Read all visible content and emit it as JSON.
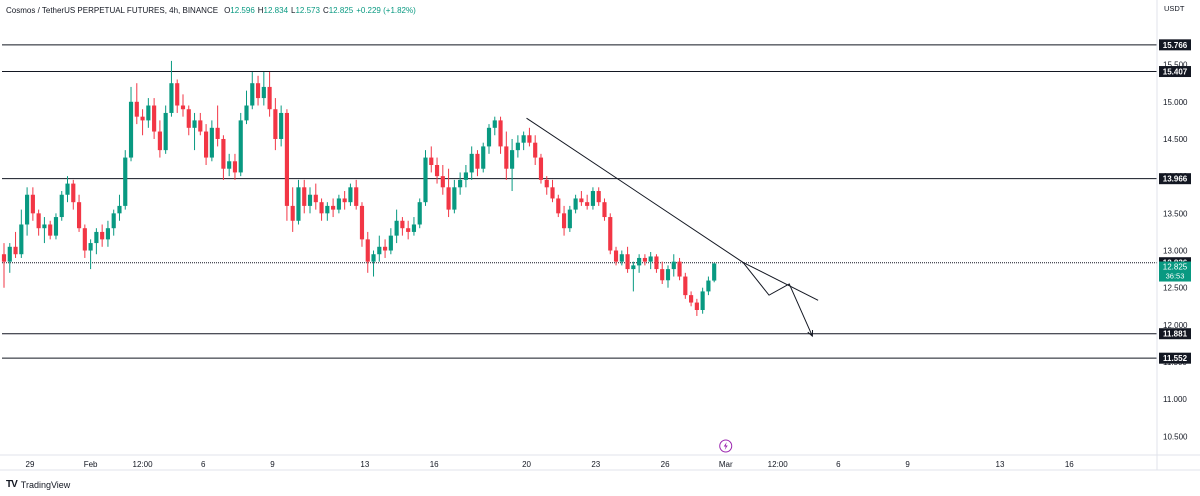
{
  "header": {
    "symbol": "Cosmos / TetherUS PERPETUAL FUTURES, 4h, BINANCE",
    "ohlc": [
      {
        "label": "O",
        "value": "12.596"
      },
      {
        "label": "H",
        "value": "12.834"
      },
      {
        "label": "L",
        "value": "12.573"
      },
      {
        "label": "C",
        "value": "12.825"
      }
    ],
    "change": "+0.229 (+1.82%)"
  },
  "currency_label": "USDT",
  "footer": {
    "brand": "TradingView"
  },
  "colors": {
    "up": "#089981",
    "down": "#f23645",
    "level_line": "#131722",
    "current_price_bg": "#089981",
    "level_label_bg": "#131722",
    "event_icon": "#9c27b0"
  },
  "chart_data": {
    "type": "candlestick",
    "title": "",
    "ylim": [
      10.25,
      16.1
    ],
    "y_ticks": [
      "15.500",
      "15.000",
      "14.500",
      "14.000",
      "13.500",
      "13.000",
      "12.500",
      "12.000",
      "11.500",
      "11.000",
      "10.500"
    ],
    "x_ticks": [
      {
        "label": "29",
        "x": 4.5
      },
      {
        "label": "Feb",
        "x": 15
      },
      {
        "label": "12:00",
        "x": 24
      },
      {
        "label": "6",
        "x": 34.5
      },
      {
        "label": "9",
        "x": 46.5
      },
      {
        "label": "13",
        "x": 62.5
      },
      {
        "label": "16",
        "x": 74.5
      },
      {
        "label": "20",
        "x": 90.5
      },
      {
        "label": "23",
        "x": 102.5
      },
      {
        "label": "26",
        "x": 114.5
      },
      {
        "label": "Mar",
        "x": 125
      },
      {
        "label": "12:00",
        "x": 134
      },
      {
        "label": "6",
        "x": 144.5
      },
      {
        "label": "9",
        "x": 156.5
      },
      {
        "label": "13",
        "x": 172.5
      },
      {
        "label": "16",
        "x": 184.5
      }
    ],
    "x_range": [
      0,
      199
    ],
    "levels": [
      {
        "label": "15.766",
        "value": 15.766
      },
      {
        "label": "15.407",
        "value": 15.407
      },
      {
        "label": "13.966",
        "value": 13.966
      },
      {
        "label": "12.836",
        "value": 12.836
      },
      {
        "label": "11.881",
        "value": 11.881
      },
      {
        "label": "11.552",
        "value": 11.552
      }
    ],
    "current_price": {
      "label": "12.825",
      "value": 12.825,
      "countdown": "36:53"
    },
    "trendline": [
      [
        90.5,
        14.78
      ],
      [
        128,
        12.84
      ],
      [
        141,
        12.33
      ]
    ],
    "projection": [
      [
        128,
        12.84
      ],
      [
        132.5,
        12.4
      ],
      [
        136,
        12.55
      ],
      [
        140,
        11.85
      ]
    ],
    "candles": [
      {
        "x": 0,
        "o": 12.95,
        "h": 13.1,
        "l": 12.5,
        "c": 12.85
      },
      {
        "x": 1,
        "o": 12.85,
        "h": 13.1,
        "l": 12.7,
        "c": 13.05
      },
      {
        "x": 2,
        "o": 13.05,
        "h": 13.25,
        "l": 12.9,
        "c": 12.95
      },
      {
        "x": 3,
        "o": 12.95,
        "h": 13.55,
        "l": 12.9,
        "c": 13.35
      },
      {
        "x": 4,
        "o": 13.35,
        "h": 13.85,
        "l": 13.2,
        "c": 13.75
      },
      {
        "x": 5,
        "o": 13.75,
        "h": 13.85,
        "l": 13.4,
        "c": 13.5
      },
      {
        "x": 6,
        "o": 13.5,
        "h": 13.55,
        "l": 13.2,
        "c": 13.3
      },
      {
        "x": 7,
        "o": 13.3,
        "h": 13.45,
        "l": 13.1,
        "c": 13.35
      },
      {
        "x": 8,
        "o": 13.35,
        "h": 13.4,
        "l": 13.15,
        "c": 13.2
      },
      {
        "x": 9,
        "o": 13.2,
        "h": 13.5,
        "l": 13.15,
        "c": 13.45
      },
      {
        "x": 10,
        "o": 13.45,
        "h": 13.8,
        "l": 13.4,
        "c": 13.75
      },
      {
        "x": 11,
        "o": 13.75,
        "h": 14.0,
        "l": 13.65,
        "c": 13.9
      },
      {
        "x": 12,
        "o": 13.9,
        "h": 13.95,
        "l": 13.55,
        "c": 13.65
      },
      {
        "x": 13,
        "o": 13.65,
        "h": 13.75,
        "l": 13.25,
        "c": 13.3
      },
      {
        "x": 14,
        "o": 13.3,
        "h": 13.35,
        "l": 12.9,
        "c": 13.0
      },
      {
        "x": 15,
        "o": 13.0,
        "h": 13.15,
        "l": 12.75,
        "c": 13.1
      },
      {
        "x": 16,
        "o": 13.1,
        "h": 13.3,
        "l": 12.95,
        "c": 13.25
      },
      {
        "x": 17,
        "o": 13.25,
        "h": 13.35,
        "l": 13.05,
        "c": 13.15
      },
      {
        "x": 18,
        "o": 13.15,
        "h": 13.4,
        "l": 13.05,
        "c": 13.3
      },
      {
        "x": 19,
        "o": 13.3,
        "h": 13.55,
        "l": 13.2,
        "c": 13.5
      },
      {
        "x": 20,
        "o": 13.5,
        "h": 13.75,
        "l": 13.4,
        "c": 13.6
      },
      {
        "x": 21,
        "o": 13.6,
        "h": 14.35,
        "l": 13.55,
        "c": 14.25
      },
      {
        "x": 22,
        "o": 14.25,
        "h": 15.2,
        "l": 14.2,
        "c": 15.0
      },
      {
        "x": 23,
        "o": 15.0,
        "h": 15.25,
        "l": 14.7,
        "c": 14.8
      },
      {
        "x": 24,
        "o": 14.8,
        "h": 14.9,
        "l": 14.55,
        "c": 14.75
      },
      {
        "x": 25,
        "o": 14.75,
        "h": 15.05,
        "l": 14.65,
        "c": 14.95
      },
      {
        "x": 26,
        "o": 14.95,
        "h": 15.05,
        "l": 14.5,
        "c": 14.6
      },
      {
        "x": 27,
        "o": 14.6,
        "h": 14.75,
        "l": 14.25,
        "c": 14.35
      },
      {
        "x": 28,
        "o": 14.35,
        "h": 14.95,
        "l": 14.3,
        "c": 14.85
      },
      {
        "x": 29,
        "o": 14.85,
        "h": 15.55,
        "l": 14.8,
        "c": 15.25
      },
      {
        "x": 30,
        "o": 15.25,
        "h": 15.3,
        "l": 14.85,
        "c": 14.95
      },
      {
        "x": 31,
        "o": 14.95,
        "h": 15.1,
        "l": 14.8,
        "c": 14.9
      },
      {
        "x": 32,
        "o": 14.9,
        "h": 14.95,
        "l": 14.55,
        "c": 14.65
      },
      {
        "x": 33,
        "o": 14.65,
        "h": 14.85,
        "l": 14.35,
        "c": 14.75
      },
      {
        "x": 34,
        "o": 14.75,
        "h": 14.85,
        "l": 14.55,
        "c": 14.6
      },
      {
        "x": 35,
        "o": 14.6,
        "h": 14.7,
        "l": 14.15,
        "c": 14.25
      },
      {
        "x": 36,
        "o": 14.25,
        "h": 14.75,
        "l": 14.2,
        "c": 14.65
      },
      {
        "x": 37,
        "o": 14.65,
        "h": 14.95,
        "l": 14.4,
        "c": 14.5
      },
      {
        "x": 38,
        "o": 14.5,
        "h": 14.55,
        "l": 13.95,
        "c": 14.1
      },
      {
        "x": 39,
        "o": 14.1,
        "h": 14.3,
        "l": 14.0,
        "c": 14.2
      },
      {
        "x": 40,
        "o": 14.2,
        "h": 14.3,
        "l": 13.95,
        "c": 14.05
      },
      {
        "x": 41,
        "o": 14.05,
        "h": 14.85,
        "l": 14.0,
        "c": 14.75
      },
      {
        "x": 42,
        "o": 14.75,
        "h": 15.15,
        "l": 14.7,
        "c": 14.95
      },
      {
        "x": 43,
        "o": 14.95,
        "h": 15.4,
        "l": 14.9,
        "c": 15.25
      },
      {
        "x": 44,
        "o": 15.25,
        "h": 15.35,
        "l": 14.95,
        "c": 15.05
      },
      {
        "x": 45,
        "o": 15.05,
        "h": 15.4,
        "l": 14.95,
        "c": 15.2
      },
      {
        "x": 46,
        "o": 15.2,
        "h": 15.4,
        "l": 14.8,
        "c": 14.9
      },
      {
        "x": 47,
        "o": 14.9,
        "h": 15.05,
        "l": 14.35,
        "c": 14.5
      },
      {
        "x": 48,
        "o": 14.5,
        "h": 14.95,
        "l": 14.4,
        "c": 14.85
      },
      {
        "x": 49,
        "o": 14.85,
        "h": 14.9,
        "l": 13.4,
        "c": 13.6
      },
      {
        "x": 50,
        "o": 13.6,
        "h": 13.85,
        "l": 13.25,
        "c": 13.4
      },
      {
        "x": 51,
        "o": 13.4,
        "h": 13.95,
        "l": 13.35,
        "c": 13.85
      },
      {
        "x": 52,
        "o": 13.85,
        "h": 13.95,
        "l": 13.5,
        "c": 13.6
      },
      {
        "x": 53,
        "o": 13.6,
        "h": 13.85,
        "l": 13.5,
        "c": 13.75
      },
      {
        "x": 54,
        "o": 13.75,
        "h": 13.9,
        "l": 13.55,
        "c": 13.65
      },
      {
        "x": 55,
        "o": 13.65,
        "h": 13.7,
        "l": 13.4,
        "c": 13.5
      },
      {
        "x": 56,
        "o": 13.5,
        "h": 13.65,
        "l": 13.4,
        "c": 13.6
      },
      {
        "x": 57,
        "o": 13.6,
        "h": 13.7,
        "l": 13.45,
        "c": 13.55
      },
      {
        "x": 58,
        "o": 13.55,
        "h": 13.75,
        "l": 13.5,
        "c": 13.7
      },
      {
        "x": 59,
        "o": 13.7,
        "h": 13.8,
        "l": 13.55,
        "c": 13.65
      },
      {
        "x": 60,
        "o": 13.65,
        "h": 13.9,
        "l": 13.6,
        "c": 13.85
      },
      {
        "x": 61,
        "o": 13.85,
        "h": 13.95,
        "l": 13.55,
        "c": 13.6
      },
      {
        "x": 62,
        "o": 13.6,
        "h": 13.65,
        "l": 13.05,
        "c": 13.15
      },
      {
        "x": 63,
        "o": 13.15,
        "h": 13.25,
        "l": 12.7,
        "c": 12.85
      },
      {
        "x": 64,
        "o": 12.85,
        "h": 13.0,
        "l": 12.65,
        "c": 12.95
      },
      {
        "x": 65,
        "o": 12.95,
        "h": 13.2,
        "l": 12.85,
        "c": 13.05
      },
      {
        "x": 66,
        "o": 13.05,
        "h": 13.15,
        "l": 12.9,
        "c": 13.0
      },
      {
        "x": 67,
        "o": 13.0,
        "h": 13.3,
        "l": 12.95,
        "c": 13.2
      },
      {
        "x": 68,
        "o": 13.2,
        "h": 13.55,
        "l": 13.1,
        "c": 13.4
      },
      {
        "x": 69,
        "o": 13.4,
        "h": 13.45,
        "l": 13.2,
        "c": 13.3
      },
      {
        "x": 70,
        "o": 13.3,
        "h": 13.4,
        "l": 13.15,
        "c": 13.25
      },
      {
        "x": 71,
        "o": 13.25,
        "h": 13.45,
        "l": 13.2,
        "c": 13.35
      },
      {
        "x": 72,
        "o": 13.35,
        "h": 13.7,
        "l": 13.3,
        "c": 13.65
      },
      {
        "x": 73,
        "o": 13.65,
        "h": 14.35,
        "l": 13.6,
        "c": 14.25
      },
      {
        "x": 74,
        "o": 14.25,
        "h": 14.4,
        "l": 14.05,
        "c": 14.15
      },
      {
        "x": 75,
        "o": 14.15,
        "h": 14.25,
        "l": 13.9,
        "c": 14.0
      },
      {
        "x": 76,
        "o": 14.0,
        "h": 14.15,
        "l": 13.75,
        "c": 13.85
      },
      {
        "x": 77,
        "o": 13.85,
        "h": 14.1,
        "l": 13.45,
        "c": 13.55
      },
      {
        "x": 78,
        "o": 13.55,
        "h": 13.95,
        "l": 13.5,
        "c": 13.85
      },
      {
        "x": 79,
        "o": 13.85,
        "h": 14.05,
        "l": 13.75,
        "c": 13.95
      },
      {
        "x": 80,
        "o": 13.95,
        "h": 14.15,
        "l": 13.85,
        "c": 14.05
      },
      {
        "x": 81,
        "o": 14.05,
        "h": 14.4,
        "l": 13.95,
        "c": 14.3
      },
      {
        "x": 82,
        "o": 14.3,
        "h": 14.35,
        "l": 14.0,
        "c": 14.1
      },
      {
        "x": 83,
        "o": 14.1,
        "h": 14.45,
        "l": 14.05,
        "c": 14.4
      },
      {
        "x": 84,
        "o": 14.4,
        "h": 14.7,
        "l": 14.3,
        "c": 14.65
      },
      {
        "x": 85,
        "o": 14.65,
        "h": 14.8,
        "l": 14.55,
        "c": 14.75
      },
      {
        "x": 86,
        "o": 14.75,
        "h": 14.8,
        "l": 14.3,
        "c": 14.4
      },
      {
        "x": 87,
        "o": 14.4,
        "h": 14.6,
        "l": 13.95,
        "c": 14.1
      },
      {
        "x": 88,
        "o": 14.1,
        "h": 14.5,
        "l": 13.8,
        "c": 14.35
      },
      {
        "x": 89,
        "o": 14.35,
        "h": 14.55,
        "l": 14.25,
        "c": 14.45
      },
      {
        "x": 90,
        "o": 14.45,
        "h": 14.6,
        "l": 14.35,
        "c": 14.55
      },
      {
        "x": 91,
        "o": 14.55,
        "h": 14.65,
        "l": 14.4,
        "c": 14.45
      },
      {
        "x": 92,
        "o": 14.45,
        "h": 14.55,
        "l": 14.15,
        "c": 14.25
      },
      {
        "x": 93,
        "o": 14.25,
        "h": 14.3,
        "l": 13.9,
        "c": 13.95
      },
      {
        "x": 94,
        "o": 13.95,
        "h": 14.0,
        "l": 13.75,
        "c": 13.85
      },
      {
        "x": 95,
        "o": 13.85,
        "h": 13.95,
        "l": 13.65,
        "c": 13.7
      },
      {
        "x": 96,
        "o": 13.7,
        "h": 13.75,
        "l": 13.45,
        "c": 13.5
      },
      {
        "x": 97,
        "o": 13.5,
        "h": 13.6,
        "l": 13.2,
        "c": 13.3
      },
      {
        "x": 98,
        "o": 13.3,
        "h": 13.6,
        "l": 13.25,
        "c": 13.55
      },
      {
        "x": 99,
        "o": 13.55,
        "h": 13.75,
        "l": 13.5,
        "c": 13.7
      },
      {
        "x": 100,
        "o": 13.7,
        "h": 13.8,
        "l": 13.6,
        "c": 13.65
      },
      {
        "x": 101,
        "o": 13.65,
        "h": 13.75,
        "l": 13.55,
        "c": 13.6
      },
      {
        "x": 102,
        "o": 13.6,
        "h": 13.85,
        "l": 13.55,
        "c": 13.8
      },
      {
        "x": 103,
        "o": 13.8,
        "h": 13.85,
        "l": 13.6,
        "c": 13.65
      },
      {
        "x": 104,
        "o": 13.65,
        "h": 13.7,
        "l": 13.4,
        "c": 13.45
      },
      {
        "x": 105,
        "o": 13.45,
        "h": 13.5,
        "l": 12.95,
        "c": 13.0
      },
      {
        "x": 106,
        "o": 13.0,
        "h": 13.05,
        "l": 12.8,
        "c": 12.85
      },
      {
        "x": 107,
        "o": 12.85,
        "h": 13.0,
        "l": 12.8,
        "c": 12.95
      },
      {
        "x": 108,
        "o": 12.95,
        "h": 13.05,
        "l": 12.7,
        "c": 12.75
      },
      {
        "x": 109,
        "o": 12.75,
        "h": 12.85,
        "l": 12.45,
        "c": 12.8
      },
      {
        "x": 110,
        "o": 12.8,
        "h": 12.95,
        "l": 12.7,
        "c": 12.9
      },
      {
        "x": 111,
        "o": 12.9,
        "h": 12.95,
        "l": 12.8,
        "c": 12.85
      },
      {
        "x": 112,
        "o": 12.85,
        "h": 12.98,
        "l": 12.75,
        "c": 12.92
      },
      {
        "x": 113,
        "o": 12.92,
        "h": 12.95,
        "l": 12.7,
        "c": 12.75
      },
      {
        "x": 114,
        "o": 12.75,
        "h": 12.85,
        "l": 12.55,
        "c": 12.6
      },
      {
        "x": 115,
        "o": 12.6,
        "h": 12.8,
        "l": 12.5,
        "c": 12.75
      },
      {
        "x": 116,
        "o": 12.75,
        "h": 12.95,
        "l": 12.65,
        "c": 12.85
      },
      {
        "x": 117,
        "o": 12.85,
        "h": 12.9,
        "l": 12.6,
        "c": 12.65
      },
      {
        "x": 118,
        "o": 12.65,
        "h": 12.7,
        "l": 12.35,
        "c": 12.4
      },
      {
        "x": 119,
        "o": 12.4,
        "h": 12.45,
        "l": 12.25,
        "c": 12.3
      },
      {
        "x": 120,
        "o": 12.3,
        "h": 12.35,
        "l": 12.12,
        "c": 12.2
      },
      {
        "x": 121,
        "o": 12.2,
        "h": 12.5,
        "l": 12.15,
        "c": 12.45
      },
      {
        "x": 122,
        "o": 12.45,
        "h": 12.65,
        "l": 12.4,
        "c": 12.596
      },
      {
        "x": 123,
        "o": 12.596,
        "h": 12.834,
        "l": 12.573,
        "c": 12.825
      }
    ]
  }
}
